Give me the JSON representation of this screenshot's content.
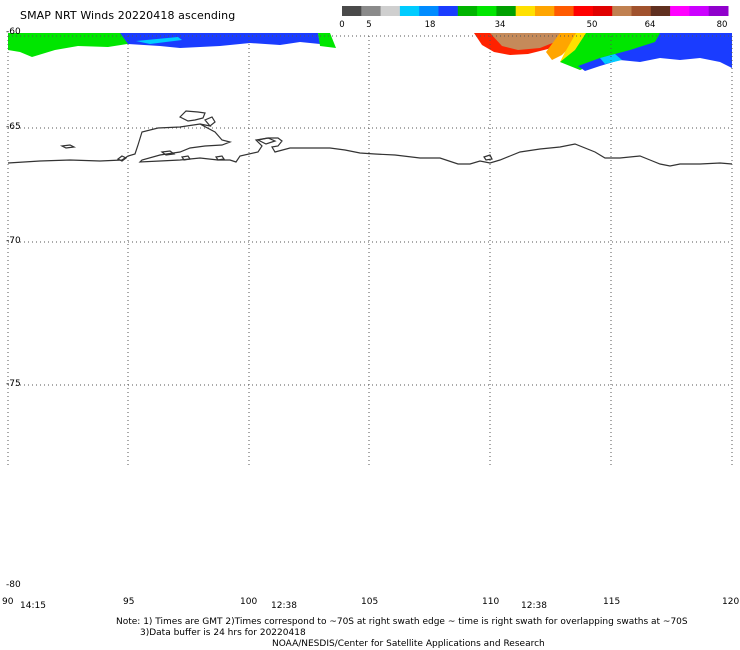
{
  "title": "SMAP NRT Winds 20220418 ascending",
  "colorbar": {
    "tick_labels": [
      "0",
      "5",
      "18",
      "34",
      "50",
      "64",
      "80"
    ],
    "segments": [
      "#4a4a4a",
      "#8a8a8a",
      "#cfcfcf",
      "#00ccff",
      "#008cff",
      "#1a3cff",
      "#00b400",
      "#00e600",
      "#00a000",
      "#ffe000",
      "#ffa500",
      "#ff5a00",
      "#ff0000",
      "#e00000",
      "#c08050",
      "#a0522d",
      "#603020",
      "#ff00ff",
      "#cc00ff",
      "#9000cc"
    ]
  },
  "map": {
    "lat_labels": [
      "-60",
      "-65",
      "-70",
      "-75",
      "-80"
    ],
    "lon_labels": [
      "90",
      "95",
      "100",
      "105",
      "110",
      "115",
      "120"
    ],
    "time_labels": [
      "14:15",
      "12:38",
      "12:38"
    ]
  },
  "notes": {
    "line1": "Note: 1) Times are GMT 2)Times correspond to ~70S at right swath edge ~ time is right swath for overlapping swaths at ~70S",
    "line2": "3)Data buffer is 24 hrs for 20220418",
    "line3": "NOAA/NESDIS/Center for Satellite Applications and Research"
  }
}
